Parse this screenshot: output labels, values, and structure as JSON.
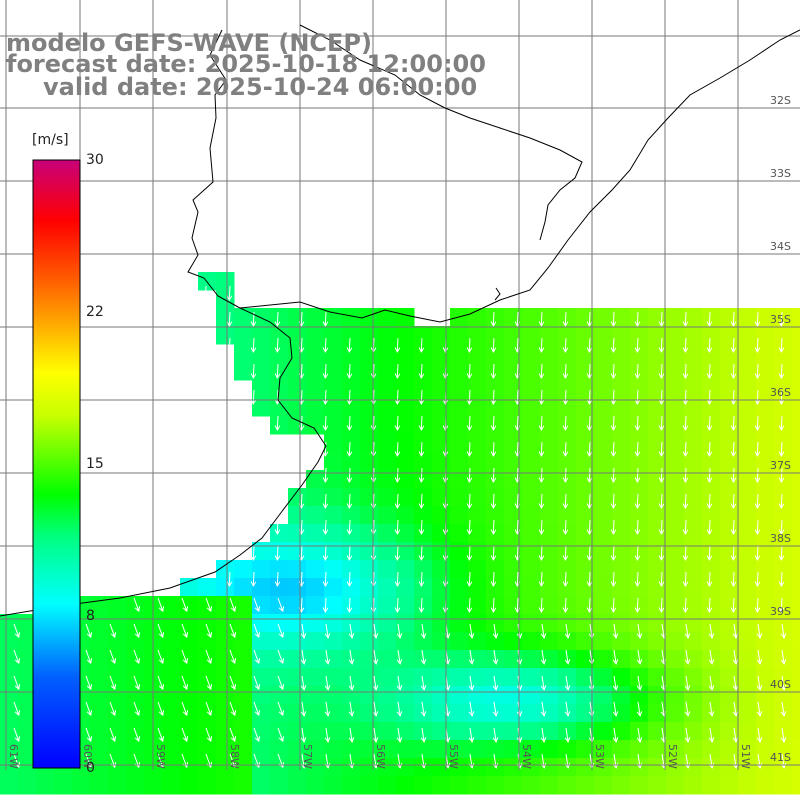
{
  "title": {
    "model": "modelo GEFS-WAVE (NCEP)",
    "forecast": "forecast date: 2025-10-18 12:00:00",
    "valid": "valid date: 2025-10-24 06:00:00"
  },
  "colorbar": {
    "unit": "[m/s]",
    "min": 0,
    "max": 30,
    "ticks": [
      "30",
      "22",
      "15",
      "8",
      "0"
    ],
    "tick_values": [
      30,
      22,
      15,
      8,
      0
    ]
  },
  "lat_labels": [
    "32S",
    "33S",
    "34S",
    "35S",
    "36S",
    "37S",
    "38S",
    "39S",
    "40S",
    "41S"
  ],
  "lon_labels": [
    "61W",
    "60W",
    "59W",
    "58W",
    "57W",
    "56W",
    "55W",
    "54W",
    "53W",
    "52W",
    "51W"
  ],
  "colors": {
    "land": "#ffffff",
    "grid": "#777777",
    "coast": "#000000",
    "arrow": "#ffffff"
  }
}
